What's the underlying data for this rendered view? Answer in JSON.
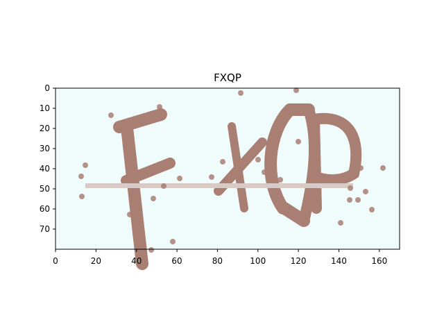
{
  "figure": {
    "title": "FXQP"
  },
  "axes": {
    "x_range": [
      0,
      170
    ],
    "y_range": [
      80,
      0
    ],
    "x_ticks": [
      "0",
      "20",
      "40",
      "60",
      "80",
      "100",
      "120",
      "140",
      "160"
    ],
    "y_ticks": [
      "0",
      "10",
      "20",
      "30",
      "40",
      "50",
      "60",
      "70"
    ]
  },
  "captcha": {
    "text": "FXQP",
    "background_color": "#f0fcfc",
    "glyph_color": "#a97f74",
    "line_color": "#d8cbc5"
  }
}
